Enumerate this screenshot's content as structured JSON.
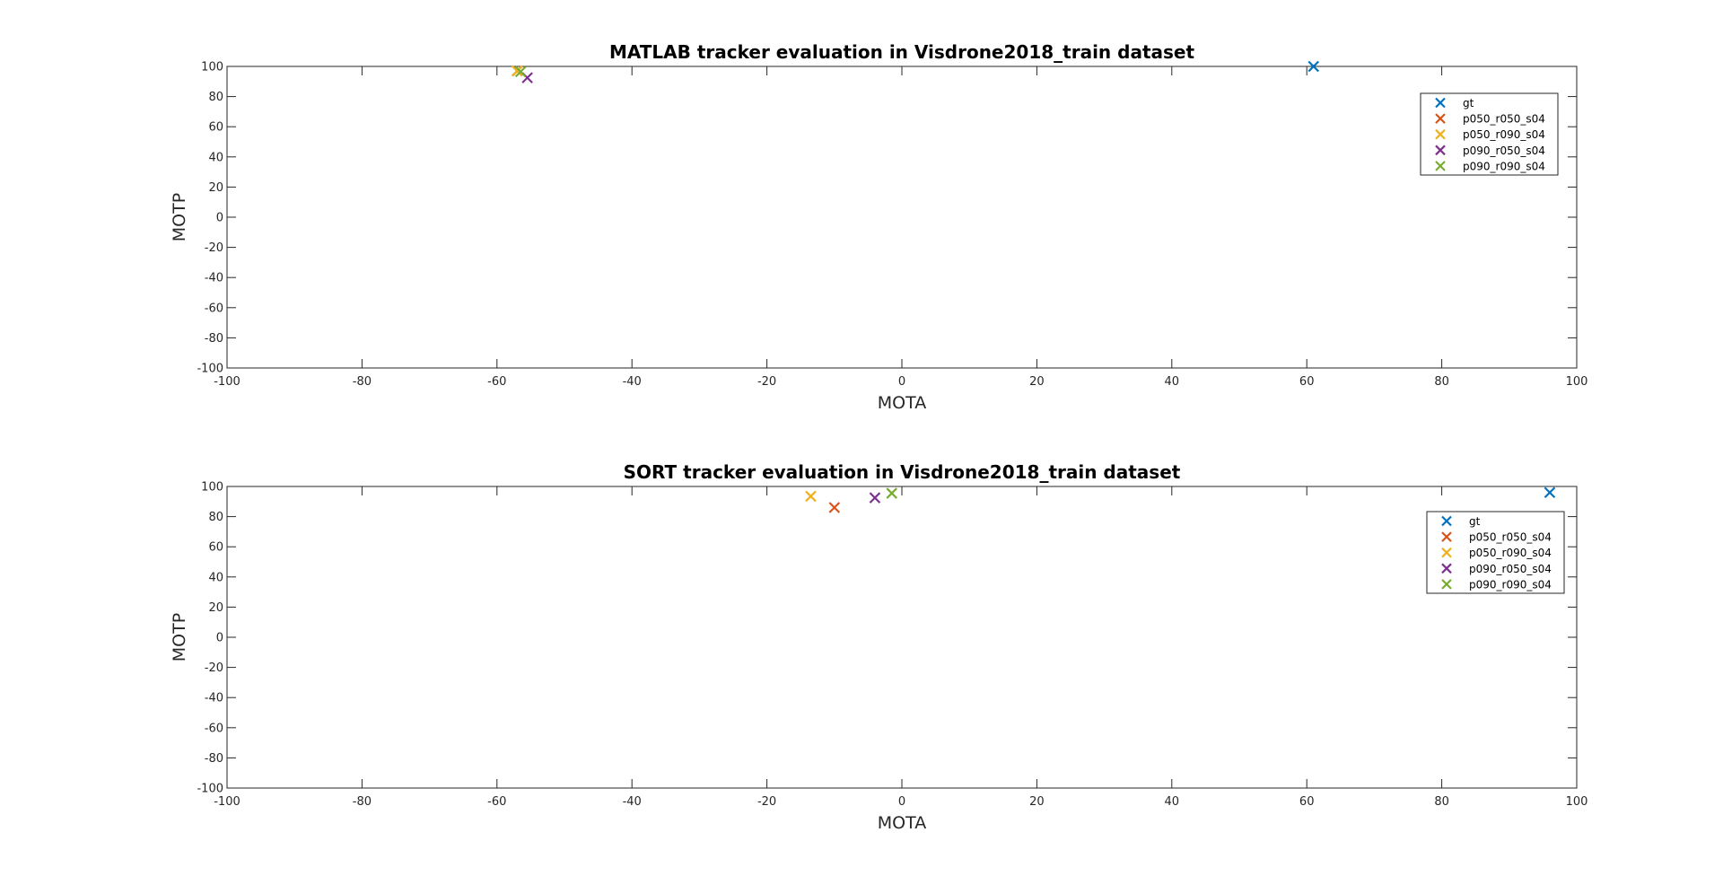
{
  "chart_data": [
    {
      "type": "scatter",
      "title": "MATLAB tracker evaluation in Visdrone2018_train dataset",
      "xlabel": "MOTA",
      "ylabel": "MOTP",
      "xlim": [
        -100,
        100
      ],
      "ylim": [
        -100,
        100
      ],
      "xticks": [
        -100,
        -80,
        -60,
        -40,
        -20,
        0,
        20,
        40,
        60,
        80,
        100
      ],
      "yticks": [
        -100,
        -80,
        -60,
        -40,
        -20,
        0,
        20,
        40,
        60,
        80,
        100
      ],
      "grid": false,
      "legend_position": "top-right",
      "marker": "x",
      "series": [
        {
          "name": "gt",
          "color": "#0072BD",
          "points": [
            [
              61,
              100
            ]
          ]
        },
        {
          "name": "p050_r050_s04",
          "color": "#D95319",
          "points": [
            [
              -57,
              97
            ]
          ]
        },
        {
          "name": "p050_r090_s04",
          "color": "#EDB120",
          "points": [
            [
              -57,
              97
            ]
          ]
        },
        {
          "name": "p090_r050_s04",
          "color": "#7E2F8E",
          "points": [
            [
              -55.5,
              92.5
            ]
          ]
        },
        {
          "name": "p090_r090_s04",
          "color": "#77AC30",
          "points": [
            [
              -56.5,
              96.5
            ]
          ]
        }
      ]
    },
    {
      "type": "scatter",
      "title": "SORT tracker evaluation in Visdrone2018_train dataset",
      "xlabel": "MOTA",
      "ylabel": "MOTP",
      "xlim": [
        -100,
        100
      ],
      "ylim": [
        -100,
        100
      ],
      "xticks": [
        -100,
        -80,
        -60,
        -40,
        -20,
        0,
        20,
        40,
        60,
        80,
        100
      ],
      "yticks": [
        -100,
        -80,
        -60,
        -40,
        -20,
        0,
        20,
        40,
        60,
        80,
        100
      ],
      "grid": false,
      "legend_position": "top-right",
      "marker": "x",
      "series": [
        {
          "name": "gt",
          "color": "#0072BD",
          "points": [
            [
              96,
              96
            ]
          ]
        },
        {
          "name": "p050_r050_s04",
          "color": "#D95319",
          "points": [
            [
              -10,
              86
            ]
          ]
        },
        {
          "name": "p050_r090_s04",
          "color": "#EDB120",
          "points": [
            [
              -13.5,
              93.5
            ]
          ]
        },
        {
          "name": "p090_r050_s04",
          "color": "#7E2F8E",
          "points": [
            [
              -4,
              92.5
            ]
          ]
        },
        {
          "name": "p090_r090_s04",
          "color": "#77AC30",
          "points": [
            [
              -1.5,
              95.5
            ]
          ]
        }
      ]
    }
  ]
}
